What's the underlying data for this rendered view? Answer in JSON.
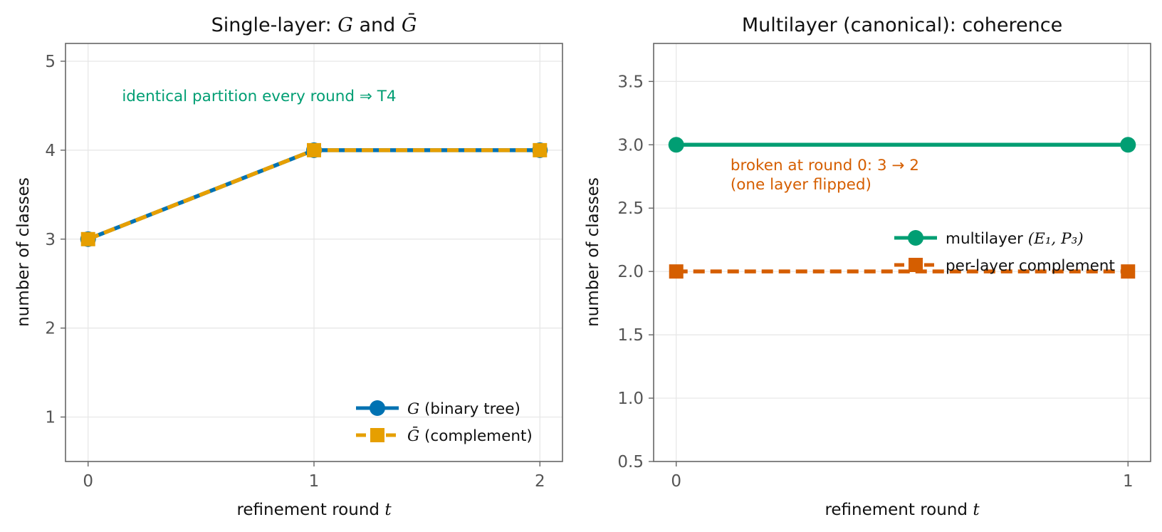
{
  "colors": {
    "blue": "#0072B2",
    "orange": "#E69F00",
    "green": "#009E73",
    "vermillion": "#D55E00"
  },
  "chart_data": [
    {
      "type": "line",
      "title": "Single-layer: G and Ḡ",
      "title_parts": {
        "pre": "Single-layer: ",
        "g": "G",
        "mid": " and ",
        "gbar": "Ḡ"
      },
      "xlabel": "refinement round t",
      "xlabel_parts": {
        "text": "refinement round ",
        "var": "t"
      },
      "ylabel": "number of classes",
      "x": [
        0,
        1,
        2
      ],
      "xlim": [
        -0.1,
        2.1
      ],
      "ylim": [
        0.5,
        5.2
      ],
      "xticks": [
        0,
        1,
        2
      ],
      "yticks": [
        1,
        2,
        3,
        4,
        5
      ],
      "grid": true,
      "legend_position": "lower-right",
      "series": [
        {
          "name": "G (binary tree)",
          "name_parts": {
            "var": "G",
            "rest": " (binary tree)"
          },
          "values": [
            3,
            4,
            4
          ],
          "color": "#0072B2",
          "marker": "circle",
          "style": "solid"
        },
        {
          "name": "Ḡ (complement)",
          "name_parts": {
            "var": "Ḡ",
            "rest": " (complement)"
          },
          "values": [
            3,
            4,
            4
          ],
          "color": "#E69F00",
          "marker": "square",
          "style": "dashed"
        }
      ],
      "annotation": {
        "text": "identical partition every round ⇒ T4",
        "x": 0.15,
        "y": 4.55,
        "color": "#009E73"
      }
    },
    {
      "type": "line",
      "title": "Multilayer (canonical): coherence",
      "xlabel": "refinement round t",
      "xlabel_parts": {
        "text": "refinement round ",
        "var": "t"
      },
      "ylabel": "number of classes",
      "x": [
        0,
        1
      ],
      "xlim": [
        -0.05,
        1.05
      ],
      "ylim": [
        0.5,
        3.8
      ],
      "xticks": [
        0,
        1
      ],
      "yticks": [
        0.5,
        1.0,
        1.5,
        2.0,
        2.5,
        3.0,
        3.5
      ],
      "grid": true,
      "legend_position": "center-right",
      "series": [
        {
          "name": "multilayer (E1, P3)",
          "name_parts": {
            "text": "multilayer ",
            "math": "(E₁, P₃)"
          },
          "values": [
            3,
            3
          ],
          "color": "#009E73",
          "marker": "circle",
          "style": "solid"
        },
        {
          "name": "per-layer complement",
          "values": [
            2,
            2
          ],
          "color": "#D55E00",
          "marker": "square",
          "style": "dashed"
        }
      ],
      "annotation": {
        "lines": [
          "broken at round 0: 3 → 2",
          "(one layer flipped)"
        ],
        "x": 0.12,
        "y": 2.8,
        "color": "#D55E00"
      }
    }
  ]
}
